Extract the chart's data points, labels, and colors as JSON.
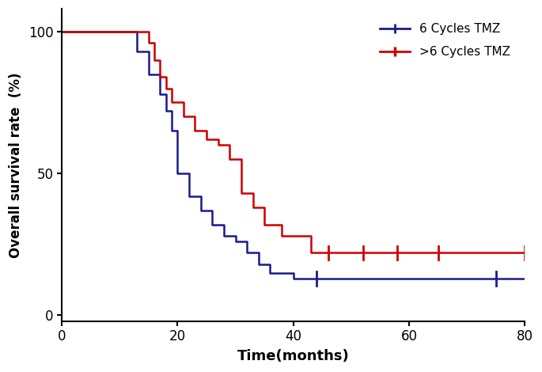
{
  "xlabel": "Time(months)",
  "ylabel": "Overall survival rate  (%)",
  "xlim": [
    0,
    80
  ],
  "ylim": [
    -2,
    108
  ],
  "yticks": [
    0,
    50,
    100
  ],
  "xticks": [
    0,
    20,
    40,
    60,
    80
  ],
  "blue_color": "#1a1a8c",
  "red_color": "#cc0000",
  "blue_curve": {
    "times": [
      0,
      13,
      13,
      15,
      15,
      17,
      17,
      18,
      18,
      19,
      19,
      20,
      20,
      22,
      22,
      24,
      24,
      26,
      26,
      28,
      28,
      30,
      30,
      32,
      32,
      34,
      34,
      36,
      36,
      40,
      40,
      44,
      44,
      80
    ],
    "surv": [
      100,
      100,
      93,
      93,
      85,
      85,
      78,
      78,
      72,
      72,
      65,
      65,
      50,
      50,
      42,
      42,
      37,
      37,
      32,
      32,
      28,
      28,
      26,
      26,
      22,
      22,
      18,
      18,
      15,
      15,
      13,
      13,
      13,
      13
    ],
    "censor_times": [
      44,
      75
    ],
    "censor_surv": [
      13,
      13
    ]
  },
  "red_curve": {
    "times": [
      0,
      15,
      15,
      16,
      16,
      17,
      17,
      18,
      18,
      19,
      19,
      21,
      21,
      23,
      23,
      25,
      25,
      27,
      27,
      29,
      29,
      31,
      31,
      33,
      33,
      35,
      35,
      38,
      38,
      43,
      43,
      46,
      46,
      52,
      52,
      58,
      58,
      65,
      65,
      80
    ],
    "surv": [
      100,
      100,
      96,
      96,
      90,
      90,
      84,
      84,
      80,
      80,
      75,
      75,
      70,
      70,
      65,
      65,
      62,
      62,
      60,
      60,
      55,
      55,
      43,
      43,
      38,
      38,
      32,
      32,
      28,
      28,
      22,
      22,
      22,
      22,
      22,
      22,
      22,
      22,
      22,
      22
    ],
    "censor_times": [
      46,
      52,
      58,
      65,
      80
    ],
    "censor_surv": [
      22,
      22,
      22,
      22,
      22
    ]
  }
}
